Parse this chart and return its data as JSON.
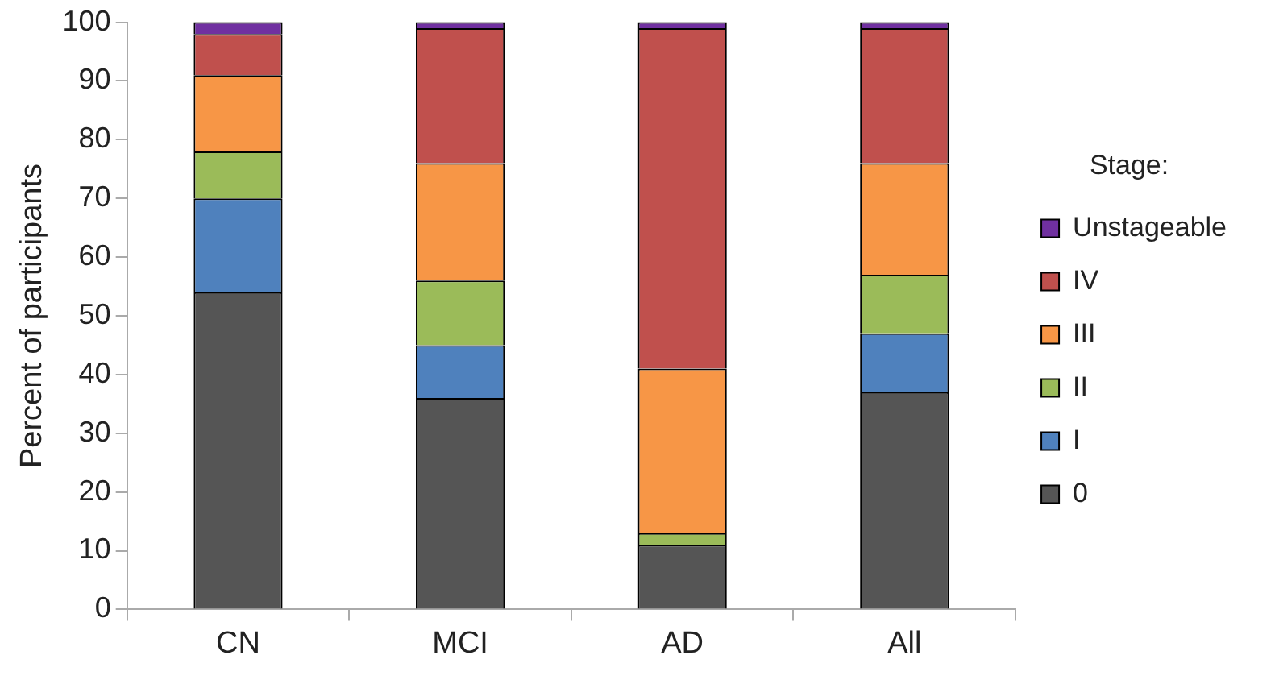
{
  "chart_data": {
    "type": "bar",
    "stacked": true,
    "ylabel": "Percent of participants",
    "legend_title": "Stage:",
    "legend": "right",
    "grid": false,
    "categories": [
      "CN",
      "MCI",
      "AD",
      "All"
    ],
    "ylim": [
      0,
      100
    ],
    "yticks": [
      0,
      10,
      20,
      30,
      40,
      50,
      60,
      70,
      80,
      90,
      100
    ],
    "series": [
      {
        "name": "0",
        "color": "#555555",
        "values": [
          54,
          36,
          11,
          37
        ]
      },
      {
        "name": "I",
        "color": "#4f81bd",
        "values": [
          16,
          9,
          0,
          10
        ]
      },
      {
        "name": "II",
        "color": "#9bbb59",
        "values": [
          8,
          11,
          2,
          10
        ]
      },
      {
        "name": "III",
        "color": "#f79646",
        "values": [
          13,
          20,
          28,
          19
        ]
      },
      {
        "name": "IV",
        "color": "#c0504d",
        "values": [
          7,
          23,
          58,
          23
        ]
      },
      {
        "name": "Unstageable",
        "color": "#7030a0",
        "values": [
          2,
          1,
          1,
          1
        ]
      }
    ]
  }
}
